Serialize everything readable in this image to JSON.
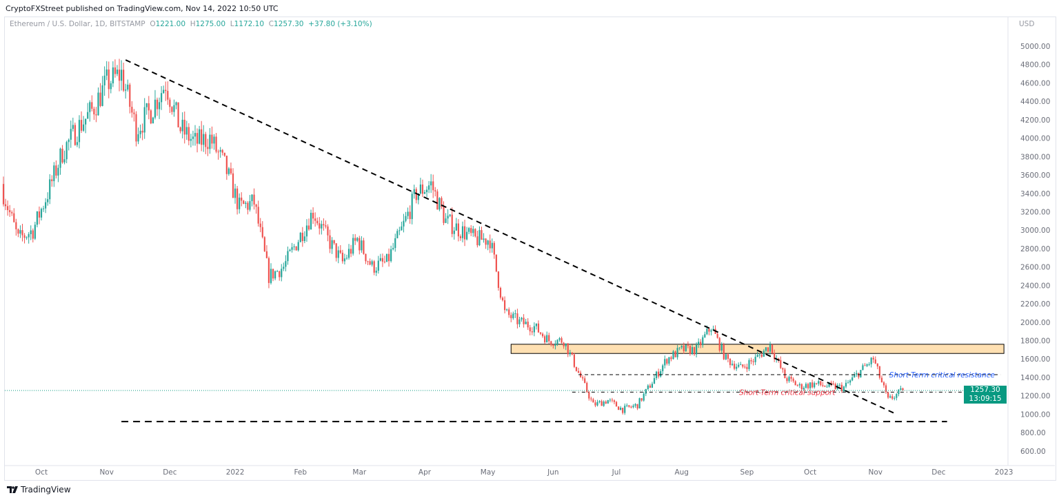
{
  "header": {
    "published": "CryptoFXStreet published on TradingView.com, Nov 14, 2022 10:50 UTC"
  },
  "legend": {
    "symbol": "Ethereum / U.S. Dollar, 1D, BITSTAMP",
    "o_label": "O",
    "o": "1221.00",
    "h_label": "H",
    "h": "1275.00",
    "l_label": "L",
    "l": "1172.10",
    "c_label": "C",
    "c": "1257.30",
    "change": "+37.80 (+3.10%)"
  },
  "axis": {
    "unit": "USD"
  },
  "price_label": {
    "price": "1257.30",
    "countdown": "13:09:15"
  },
  "footer": {
    "brand": "TradingView"
  },
  "colors": {
    "up": "#26a69a",
    "down": "#ef5350",
    "zone_fill": "#ffe0b2",
    "support_text": "#f23645",
    "resistance_text": "#2962ff",
    "last_price": "#089981"
  },
  "chart_data": {
    "type": "candlestick",
    "title": "Ethereum / U.S. Dollar, 1D, BITSTAMP",
    "ylim": [
      500,
      5150
    ],
    "yticks": [
      600,
      800,
      1000,
      1200,
      1400,
      1600,
      1800,
      2000,
      2200,
      2400,
      2600,
      2800,
      3000,
      3200,
      3400,
      3600,
      3800,
      4000,
      4200,
      4400,
      4600,
      4800,
      5000
    ],
    "ytick_labels": [
      "600.00",
      "800.00",
      "1000.00",
      "1200.00",
      "1400.00",
      "1600.00",
      "1800.00",
      "2000.00",
      "2200.00",
      "2400.00",
      "2600.00",
      "2800.00",
      "3000.00",
      "3200.00",
      "3400.00",
      "3600.00",
      "3800.00",
      "4000.00",
      "4200.00",
      "4400.00",
      "4600.00",
      "4800.00",
      "5000.00"
    ],
    "xticks": [
      {
        "label": "Oct",
        "date": "2021-10-01"
      },
      {
        "label": "Nov",
        "date": "2021-11-01"
      },
      {
        "label": "Dec",
        "date": "2021-12-01"
      },
      {
        "label": "2022",
        "date": "2022-01-01"
      },
      {
        "label": "Feb",
        "date": "2022-02-01"
      },
      {
        "label": "Mar",
        "date": "2022-03-01"
      },
      {
        "label": "Apr",
        "date": "2022-04-01"
      },
      {
        "label": "May",
        "date": "2022-05-01"
      },
      {
        "label": "Jun",
        "date": "2022-06-01"
      },
      {
        "label": "Jul",
        "date": "2022-07-01"
      },
      {
        "label": "Aug",
        "date": "2022-08-01"
      },
      {
        "label": "Sep",
        "date": "2022-09-01"
      },
      {
        "label": "Oct",
        "date": "2022-10-01"
      },
      {
        "label": "Nov",
        "date": "2022-11-01"
      },
      {
        "label": "Dec",
        "date": "2022-12-01"
      },
      {
        "label": "2023",
        "date": "2023-01-01"
      }
    ],
    "weekly_closes": {
      "start": "2021-09-13",
      "values": [
        3400,
        2900,
        3000,
        3400,
        3850,
        4100,
        4300,
        4600,
        4700,
        4100,
        4300,
        4600,
        4100,
        3950,
        4000,
        3700,
        3250,
        3300,
        2500,
        2600,
        2900,
        3200,
        2900,
        2650,
        2900,
        2600,
        2650,
        3000,
        3400,
        3500,
        3100,
        3000,
        2900,
        2900,
        2100,
        2000,
        1950,
        1800,
        1800,
        1450,
        1100,
        1150,
        1050,
        1100,
        1350,
        1600,
        1700,
        1700,
        1950,
        1600,
        1500,
        1600,
        1750,
        1400,
        1300,
        1330,
        1300,
        1290,
        1450,
        1600,
        1150,
        1257.3
      ]
    },
    "last_price": 1257.3,
    "annotations": {
      "trendline": {
        "from": {
          "date": "2021-11-10",
          "price": 4850
        },
        "to": {
          "date": "2022-11-10",
          "price": 1010
        }
      },
      "support_floor": {
        "from": {
          "date": "2021-11-08",
          "price": 920
        },
        "to": {
          "date": "2022-12-05",
          "price": 920
        }
      },
      "zone": {
        "from": "2022-05-12",
        "to": "2023-01-01",
        "low": 1660,
        "high": 1760
      },
      "resistance": {
        "from": "2022-06-13",
        "to": "2023-01-01",
        "price": 1430,
        "label": "Short-Term critical resistance"
      },
      "support": {
        "from": "2022-06-10",
        "to": "2023-01-01",
        "price": 1240,
        "label": "Short-Term critical support"
      }
    }
  }
}
